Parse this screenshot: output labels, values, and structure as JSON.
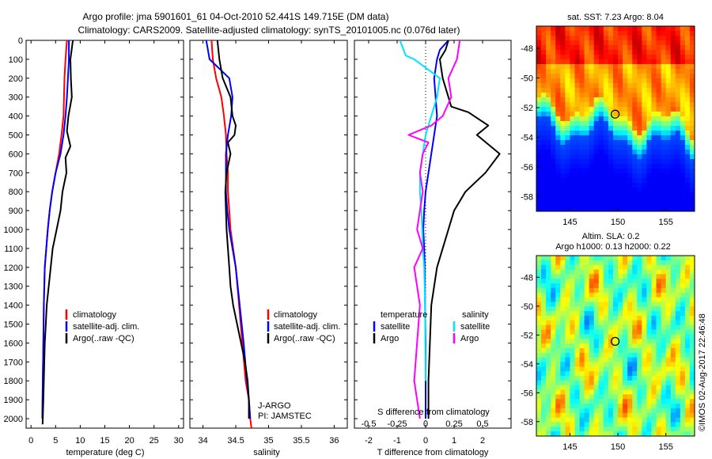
{
  "header": {
    "line1": "Argo profile: jma 5901601_61 04-Oct-2010 52.441S 149.715E (DM data)",
    "line2": "Climatology: CARS2009. Satellite-adjusted climatology: synTS_20101005.nc (0.076d later)"
  },
  "colors": {
    "climatology": "#ff0000",
    "satellite": "#0000ff",
    "argo": "#000000",
    "satellite_salinity": "#00e5ff",
    "argo_salinity": "#ff00ff"
  },
  "chart_data": [
    {
      "id": "temperature",
      "type": "line",
      "xlabel": "temperature (deg C)",
      "ylim": [
        0,
        2050
      ],
      "xlim": [
        -1,
        31
      ],
      "yticks": [
        0,
        100,
        200,
        300,
        400,
        500,
        600,
        700,
        800,
        900,
        1000,
        1100,
        1200,
        1300,
        1400,
        1500,
        1600,
        1700,
        1800,
        1900,
        2000
      ],
      "xticks": [
        0,
        5,
        10,
        15,
        20,
        25,
        30
      ],
      "legend": {
        "position": "bottom-right",
        "entries": [
          "climatology",
          "satellite-adj. clim.",
          "Argo(..raw -QC)"
        ]
      },
      "series": [
        {
          "name": "climatology",
          "color": "#ff0000",
          "x": [
            7.3,
            7.0,
            6.8,
            6.7,
            6.6,
            6.2,
            5.7,
            5.0,
            4.3,
            3.8,
            3.4,
            3.1,
            2.8,
            2.6,
            2.5,
            2.4,
            2.3
          ],
          "y": [
            0,
            100,
            200,
            300,
            400,
            500,
            600,
            700,
            800,
            900,
            1000,
            1100,
            1200,
            1400,
            1600,
            1800,
            2000
          ]
        },
        {
          "name": "satellite-adj. clim.",
          "color": "#0000ff",
          "x": [
            7.7,
            7.7,
            7.5,
            7.3,
            7.0,
            6.6,
            6.0,
            5.0,
            4.3,
            3.8,
            3.4,
            3.1,
            2.8,
            2.6,
            2.5,
            2.4,
            2.3
          ],
          "y": [
            0,
            100,
            200,
            300,
            400,
            500,
            600,
            700,
            800,
            900,
            1000,
            1100,
            1200,
            1400,
            1600,
            1800,
            2000
          ]
        },
        {
          "name": "Argo(..raw -QC)",
          "color": "#000000",
          "x": [
            8.5,
            8.0,
            8.1,
            8.3,
            7.6,
            7.3,
            8.0,
            7.0,
            7.2,
            6.4,
            6.0,
            5.2,
            4.4,
            4.0,
            3.6,
            3.2,
            3.0,
            2.8,
            2.7,
            2.6,
            2.5,
            2.4,
            2.35
          ],
          "y": [
            0,
            100,
            200,
            300,
            400,
            480,
            560,
            620,
            700,
            800,
            900,
            1000,
            1100,
            1200,
            1300,
            1400,
            1500,
            1600,
            1700,
            1800,
            1900,
            2000,
            2030
          ]
        }
      ]
    },
    {
      "id": "salinity",
      "type": "line",
      "xlabel": "salinity",
      "ylim": [
        0,
        2050
      ],
      "xlim": [
        33.8,
        36.2
      ],
      "xticks": [
        34,
        34.5,
        35,
        35.5,
        36
      ],
      "legend": {
        "position": "bottom-right",
        "entries": [
          "climatology",
          "satellite-adj. clim.",
          "Argo(..raw -QC)"
        ]
      },
      "annotations": [
        "J-ARGO",
        "PI: JAMSTEC"
      ],
      "series": [
        {
          "name": "climatology",
          "color": "#ff0000",
          "x": [
            34.13,
            34.15,
            34.2,
            34.28,
            34.32,
            34.35,
            34.36,
            34.38,
            34.38,
            34.4,
            34.42,
            34.5,
            34.55,
            34.6,
            34.65,
            34.7,
            34.72,
            34.74
          ],
          "y": [
            0,
            100,
            200,
            300,
            400,
            500,
            600,
            700,
            800,
            900,
            1000,
            1200,
            1400,
            1600,
            1800,
            1900,
            2000,
            2050
          ]
        },
        {
          "name": "satellite-adj. clim.",
          "color": "#0000ff",
          "x": [
            34.05,
            34.1,
            34.4,
            34.45,
            34.43,
            34.38,
            34.35,
            34.35,
            34.35,
            34.37,
            34.4,
            34.5,
            34.56,
            34.62,
            34.67,
            34.7,
            34.72
          ],
          "y": [
            0,
            100,
            200,
            300,
            400,
            500,
            600,
            700,
            800,
            900,
            1000,
            1200,
            1400,
            1600,
            1800,
            1900,
            2000
          ]
        },
        {
          "name": "Argo(..raw -QC)",
          "color": "#000000",
          "x": [
            34.22,
            34.25,
            34.3,
            34.42,
            34.45,
            34.5,
            34.48,
            34.38,
            34.42,
            34.36,
            34.34,
            34.35,
            34.36,
            34.38,
            34.4,
            34.42,
            34.46,
            34.52,
            34.58,
            34.64,
            34.68,
            34.7,
            34.7
          ],
          "y": [
            0,
            100,
            200,
            300,
            400,
            450,
            500,
            540,
            600,
            700,
            800,
            900,
            1000,
            1100,
            1200,
            1300,
            1400,
            1500,
            1600,
            1700,
            1800,
            1900,
            2000
          ]
        }
      ]
    },
    {
      "id": "differences",
      "type": "line",
      "xlabel": "T difference from climatology",
      "xlabel_top": "S difference from climatology",
      "ylim": [
        0,
        2050
      ],
      "xlim": [
        -2.5,
        3
      ],
      "xticks": [
        -2,
        -1,
        0,
        1,
        2
      ],
      "s_xticks": [
        "-0.5",
        "-0.25",
        "0",
        "0.25",
        "0.5"
      ],
      "legend": {
        "position": "bottom",
        "temperature_title": "temperature",
        "salinity_title": "salinity",
        "entries": [
          "satellite",
          "Argo",
          "satellite",
          "Argo"
        ]
      },
      "series": [
        {
          "name": "satellite",
          "group": "temperature",
          "color": "#0000ff",
          "x": [
            0.8,
            0.5,
            0.4,
            0.3,
            0.35,
            0.4,
            0.3,
            0.2,
            0.1,
            0.0,
            -0.05,
            -0.08,
            -0.05,
            -0.03,
            -0.02,
            0.0,
            0.0,
            0.0,
            0.0
          ],
          "y": [
            0,
            50,
            100,
            200,
            300,
            400,
            500,
            600,
            700,
            800,
            900,
            1000,
            1100,
            1200,
            1400,
            1600,
            1800,
            1900,
            2000
          ]
        },
        {
          "name": "Argo",
          "group": "temperature",
          "color": "#000000",
          "x": [
            0.8,
            0.7,
            0.5,
            0.6,
            0.8,
            0.9,
            1.5,
            2.2,
            1.8,
            2.6,
            2.1,
            1.4,
            1.0,
            0.8,
            0.6,
            0.4,
            0.3,
            0.2,
            0.15,
            0.1,
            0.1,
            0.1
          ],
          "y": [
            0,
            50,
            100,
            200,
            300,
            350,
            380,
            450,
            500,
            600,
            700,
            800,
            900,
            1000,
            1100,
            1200,
            1300,
            1400,
            1600,
            1800,
            1900,
            2000
          ]
        },
        {
          "name": "satellite",
          "group": "salinity",
          "color": "#00e5ff",
          "x": [
            -0.9,
            -0.7,
            -0.4,
            0.5,
            0.4,
            0.2,
            0.0,
            -0.1,
            -0.2,
            -0.2,
            -0.15,
            -0.12,
            -0.1,
            -0.05,
            -0.02,
            -0.01,
            0.0
          ],
          "y": [
            0,
            80,
            100,
            200,
            300,
            400,
            500,
            600,
            700,
            800,
            900,
            1000,
            1100,
            1200,
            1400,
            1600,
            1800
          ]
        },
        {
          "name": "Argo",
          "group": "salinity",
          "color": "#ff00ff",
          "x": [
            1.2,
            1.1,
            0.8,
            0.9,
            0.6,
            0.2,
            -0.6,
            0.1,
            -0.1,
            -0.2,
            -0.1,
            -0.2,
            -0.3,
            -0.1,
            -0.4,
            -0.2,
            -0.3,
            -0.4,
            -0.2
          ],
          "y": [
            0,
            100,
            200,
            300,
            400,
            450,
            500,
            540,
            600,
            700,
            800,
            900,
            1000,
            1100,
            1200,
            1400,
            1600,
            1800,
            2000
          ]
        }
      ]
    },
    {
      "id": "sst_map",
      "type": "heatmap",
      "title": "sat. SST: 7.23 Argo: 8.04",
      "xticks": [
        145,
        150,
        155
      ],
      "yticks": [
        -48,
        -50,
        -52,
        -54,
        -56,
        -58
      ],
      "xlim": [
        141.5,
        158
      ],
      "ylim": [
        -59,
        -46.5
      ],
      "marker": {
        "lon": 149.715,
        "lat": -52.441
      }
    },
    {
      "id": "sla_map",
      "type": "heatmap",
      "title": "Altim. SLA: 0.2",
      "subtitle": "Argo h1000: 0.13 h2000: 0.22",
      "xticks": [
        145,
        150,
        155
      ],
      "yticks": [
        -48,
        -50,
        -52,
        -54,
        -56,
        -58
      ],
      "xlim": [
        141.5,
        158
      ],
      "ylim": [
        -59,
        -46.5
      ],
      "marker": {
        "lon": 149.715,
        "lat": -52.441
      }
    }
  ],
  "copyright": "©IMOS 02-Aug-2017 22:46:48"
}
